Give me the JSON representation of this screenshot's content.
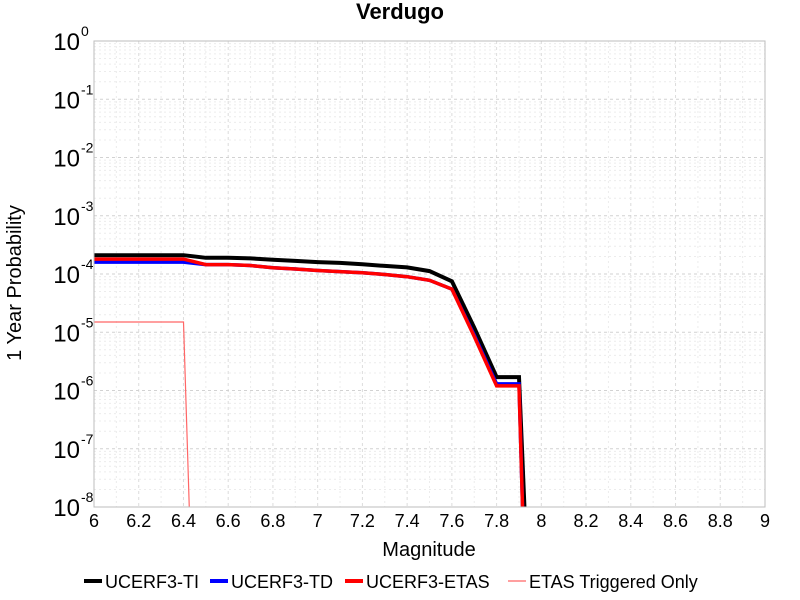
{
  "chart_data": {
    "type": "line",
    "title": "Verdugo",
    "xlabel": "Magnitude",
    "ylabel": "1 Year Probability",
    "xlim": [
      6,
      9
    ],
    "ylim": [
      1e-08,
      1
    ],
    "yscale": "log",
    "grid": true,
    "legend_position": "bottom",
    "x_ticks": [
      "6",
      "6.2",
      "6.4",
      "6.6",
      "6.8",
      "7",
      "7.2",
      "7.4",
      "7.6",
      "7.8",
      "8",
      "8.2",
      "8.4",
      "8.6",
      "8.8",
      "9"
    ],
    "y_ticks": [
      {
        "base": "10",
        "exp": "0"
      },
      {
        "base": "10",
        "exp": "-1"
      },
      {
        "base": "10",
        "exp": "-2"
      },
      {
        "base": "10",
        "exp": "-3"
      },
      {
        "base": "10",
        "exp": "-4"
      },
      {
        "base": "10",
        "exp": "-5"
      },
      {
        "base": "10",
        "exp": "-6"
      },
      {
        "base": "10",
        "exp": "-7"
      },
      {
        "base": "10",
        "exp": "-8"
      }
    ],
    "series": [
      {
        "name": "UCERF3-TI",
        "color": "#000000",
        "x": [
          6.0,
          6.1,
          6.2,
          6.3,
          6.4,
          6.5,
          6.6,
          6.7,
          6.8,
          6.9,
          7.0,
          7.1,
          7.2,
          7.3,
          7.4,
          7.5,
          7.6,
          7.7,
          7.8,
          7.9,
          7.93
        ],
        "y": [
          0.00021,
          0.00021,
          0.00021,
          0.00021,
          0.00021,
          0.00019,
          0.00019,
          0.000185,
          0.000175,
          0.000168,
          0.00016,
          0.000155,
          0.000147,
          0.000138,
          0.00013,
          0.000112,
          7.5e-05,
          1.2e-05,
          1.7e-06,
          1.7e-06,
          1e-09
        ]
      },
      {
        "name": "UCERF3-TD",
        "color": "#0000ff",
        "x": [
          6.0,
          6.1,
          6.2,
          6.3,
          6.4,
          6.5,
          6.6,
          6.7,
          6.8,
          6.9,
          7.0,
          7.1,
          7.2,
          7.3,
          7.4,
          7.5,
          7.6,
          7.7,
          7.8,
          7.9,
          7.92
        ],
        "y": [
          0.00016,
          0.00016,
          0.00016,
          0.00016,
          0.00016,
          0.000145,
          0.000145,
          0.00014,
          0.000128,
          0.000122,
          0.000115,
          0.00011,
          0.000105,
          9.8e-05,
          9e-05,
          7.8e-05,
          5.5e-05,
          9e-06,
          1.3e-06,
          1.3e-06,
          1e-09
        ]
      },
      {
        "name": "UCERF3-ETAS",
        "color": "#ff0000",
        "x": [
          6.0,
          6.1,
          6.2,
          6.3,
          6.4,
          6.5,
          6.6,
          6.7,
          6.8,
          6.9,
          7.0,
          7.1,
          7.2,
          7.3,
          7.4,
          7.5,
          7.6,
          7.7,
          7.8,
          7.9,
          7.92
        ],
        "y": [
          0.00018,
          0.00018,
          0.00018,
          0.00018,
          0.00018,
          0.000145,
          0.000145,
          0.00014,
          0.000128,
          0.000122,
          0.000115,
          0.00011,
          0.000105,
          9.8e-05,
          9e-05,
          7.8e-05,
          5.5e-05,
          8.5e-06,
          1.2e-06,
          1.2e-06,
          1e-09
        ]
      },
      {
        "name": "ETAS Triggered Only",
        "color": "#ff6666",
        "x": [
          6.0,
          6.1,
          6.2,
          6.3,
          6.4,
          6.43
        ],
        "y": [
          1.5e-05,
          1.5e-05,
          1.5e-05,
          1.5e-05,
          1.5e-05,
          1e-09
        ]
      }
    ]
  }
}
